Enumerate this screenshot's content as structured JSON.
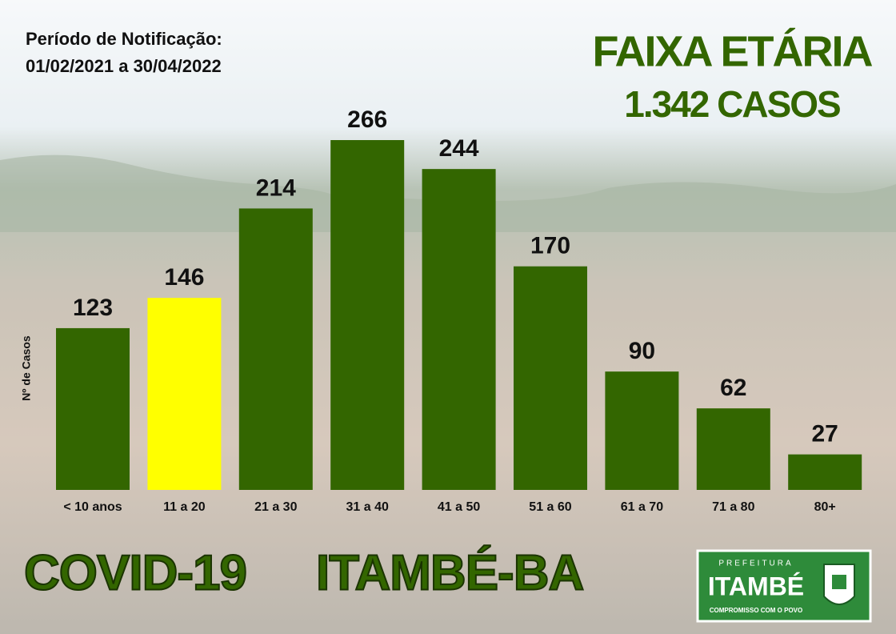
{
  "chart_data": {
    "type": "bar",
    "title": "FAIXA ETÁRIA",
    "subtitle": "1.342 CASOS",
    "period_label": "Período de Notificação:",
    "period": "01/02/2021 a 30/04/2022",
    "ylabel": "Nº de Casos",
    "categories": [
      "< 10 anos",
      "11 a 20",
      "21 a 30",
      "31 a 40",
      "41 a 50",
      "51 a 60",
      "61 a 70",
      "71 a 80",
      "80+"
    ],
    "values": [
      123,
      146,
      214,
      266,
      244,
      170,
      90,
      62,
      27
    ],
    "colors": [
      "#336600",
      "#ffff00",
      "#336600",
      "#336600",
      "#336600",
      "#336600",
      "#336600",
      "#336600",
      "#336600"
    ]
  },
  "footer": {
    "left": "COVID-19",
    "right": "ITAMBÉ-BA"
  },
  "logo": {
    "top": "PREFEITURA",
    "name": "ITAMBÉ",
    "motto": "COMPROMISSO COM O POVO"
  }
}
